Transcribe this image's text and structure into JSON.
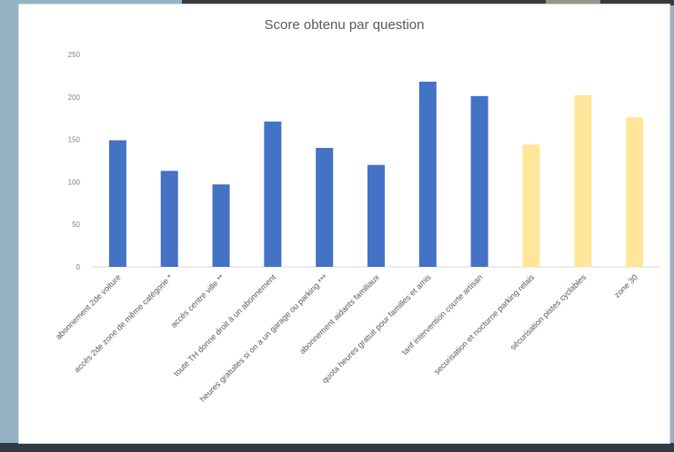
{
  "chart_data": {
    "type": "bar",
    "title": "Score obtenu par question",
    "xlabel": "",
    "ylabel": "",
    "ylim": [
      0,
      250
    ],
    "yticks": [
      0,
      50,
      100,
      150,
      200,
      250
    ],
    "grid": false,
    "legend": "none",
    "categories": [
      "abonnement 2de voiture",
      "accès 2de zone de même catégorie *",
      "accès centre ville **",
      "toute TH donne droit à un abonnement",
      "heures gratuites si on a un garage ou parking ***",
      "abonnement aidants familiaux",
      "quota heures gratuit pour familles et amis",
      "tarif intervention courte artisan",
      "securisation et nocturne parking relais",
      "sécurisation pistes cyclables",
      "zone 30"
    ],
    "values": [
      149,
      113,
      97,
      171,
      140,
      120,
      218,
      201,
      144,
      202,
      176
    ],
    "bar_colors": [
      "#4472c4",
      "#4472c4",
      "#4472c4",
      "#4472c4",
      "#4472c4",
      "#4472c4",
      "#4472c4",
      "#4472c4",
      "#ffe699",
      "#ffe699",
      "#ffe699"
    ]
  }
}
